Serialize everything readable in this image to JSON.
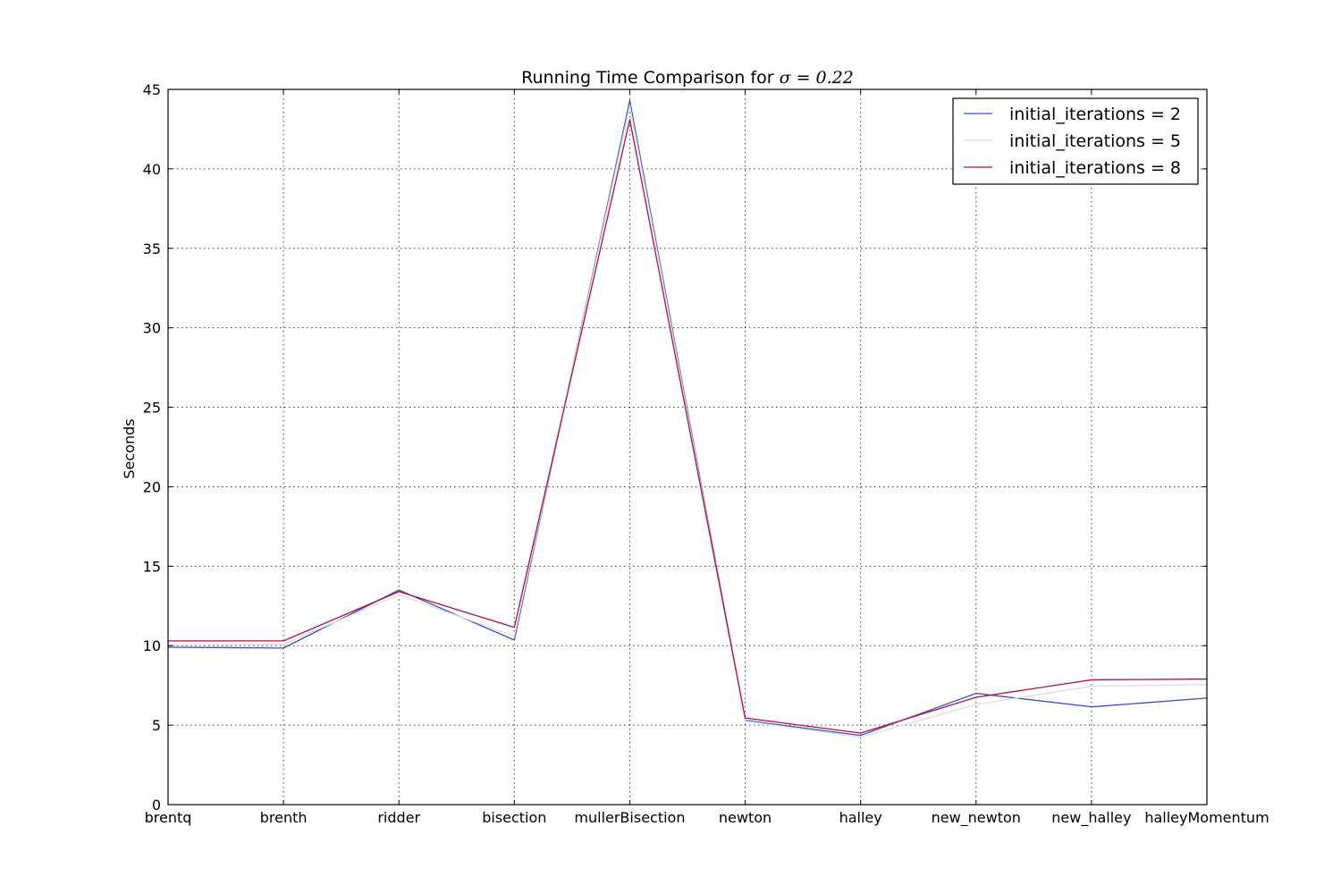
{
  "chart_data": {
    "type": "line",
    "title_prefix": "Running Time Comparison for ",
    "title_math": "σ = 0.22",
    "xlabel": "",
    "ylabel": "Seconds",
    "categories": [
      "brentq",
      "brenth",
      "ridder",
      "bisection",
      "mullerBisection",
      "newton",
      "halley",
      "new_newton",
      "new_halley",
      "halleyMomentum"
    ],
    "ylim": [
      0,
      45
    ],
    "yticks": [
      0,
      5,
      10,
      15,
      20,
      25,
      30,
      35,
      40,
      45
    ],
    "grid": true,
    "legend_position": "top-right",
    "series": [
      {
        "name": "initial_iterations = 2",
        "color": "#3a4ccf",
        "values": [
          9.9,
          9.85,
          13.5,
          10.35,
          44.3,
          5.3,
          4.35,
          7.0,
          6.15,
          6.7
        ]
      },
      {
        "name": "initial_iterations = 5",
        "color": "#dcdcdc",
        "values": [
          10.05,
          10.1,
          13.2,
          10.6,
          44.0,
          5.25,
          4.25,
          6.3,
          7.45,
          7.55
        ]
      },
      {
        "name": "initial_iterations = 8",
        "color": "#b40f3c",
        "values": [
          10.3,
          10.3,
          13.4,
          11.15,
          43.1,
          5.45,
          4.5,
          6.75,
          7.85,
          7.9
        ]
      }
    ]
  }
}
